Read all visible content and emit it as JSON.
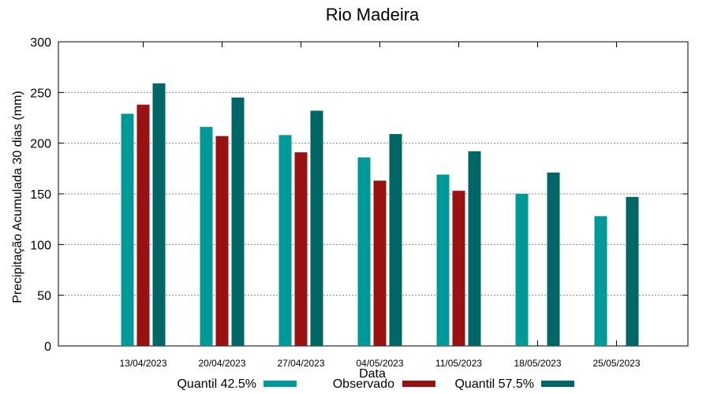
{
  "chart_data": {
    "type": "bar",
    "title": "Rio Madeira",
    "xlabel": "Data",
    "ylabel": "Precipitação Acumulada 30 dias (mm)",
    "ylim": [
      0,
      300
    ],
    "yticks": [
      0,
      50,
      100,
      150,
      200,
      250,
      300
    ],
    "grid": true,
    "legend_position": "bottom",
    "categories": [
      "13/04/2023",
      "20/04/2023",
      "27/04/2023",
      "04/05/2023",
      "11/05/2023",
      "18/05/2023",
      "25/05/2023"
    ],
    "series": [
      {
        "name": "Quantil 42.5%",
        "color": "#009999",
        "values": [
          229,
          216,
          208,
          186,
          169,
          150,
          128
        ]
      },
      {
        "name": "Observado",
        "color": "#991111",
        "values": [
          238,
          207,
          191,
          163,
          153,
          null,
          null
        ]
      },
      {
        "name": "Quantil 57.5%",
        "color": "#006666",
        "values": [
          259,
          245,
          232,
          209,
          192,
          171,
          147
        ]
      }
    ]
  }
}
